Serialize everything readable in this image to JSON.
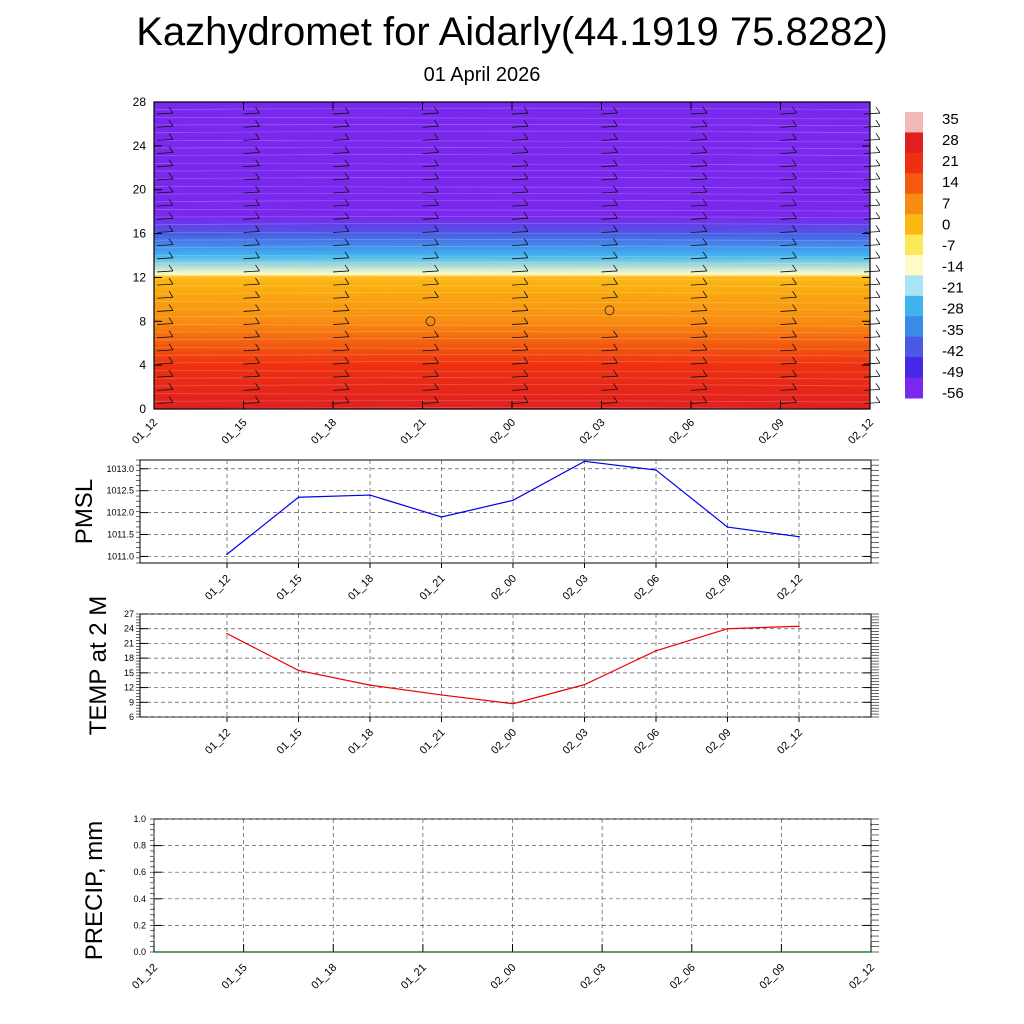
{
  "title": "Kazhydromet for Aidarly(44.1919 75.8282)",
  "date": "01 April 2026",
  "colors": {
    "pmsl_line": "#0000ee",
    "temp_line": "#ee0000",
    "precip_line": "#006400",
    "grid": "#555555"
  },
  "chart_data": [
    {
      "type": "heatmap",
      "name": "cross-section",
      "x_ticks": [
        "01_12",
        "01_15",
        "01_18",
        "01_21",
        "02_00",
        "02_03",
        "02_06",
        "02_09",
        "02_12"
      ],
      "y_ticks": [
        0,
        4,
        8,
        12,
        16,
        20,
        24,
        28
      ],
      "ylim": [
        0,
        28
      ],
      "colorbar_labels": [
        "35",
        "28",
        "21",
        "14",
        "7",
        "0",
        "-7",
        "-14",
        "-21",
        "-28",
        "-35",
        "-42",
        "-49",
        "-56"
      ],
      "colorbar_colors": [
        "#f3b8b8",
        "#e02020",
        "#ee3010",
        "#f55a10",
        "#f88c10",
        "#fbb810",
        "#fde85a",
        "#fefbc8",
        "#a8e4f4",
        "#40b4ee",
        "#3a8ae8",
        "#4a5ae4",
        "#4428e8",
        "#7a28ee"
      ],
      "value_profile": [
        {
          "height": 0,
          "value": 32
        },
        {
          "height": 4,
          "value": 24
        },
        {
          "height": 8,
          "value": 12
        },
        {
          "height": 12,
          "value": 0
        },
        {
          "height": 12.3,
          "value": -14
        },
        {
          "height": 14,
          "value": -26
        },
        {
          "height": 16,
          "value": -38
        },
        {
          "height": 17.5,
          "value": -50
        },
        {
          "height": 19,
          "value": -56
        },
        {
          "height": 28,
          "value": -58
        }
      ],
      "grid": false
    },
    {
      "type": "line",
      "name": "pmsl",
      "ylabel": "PMSL",
      "categories": [
        "01_12",
        "01_15",
        "01_18",
        "01_21",
        "02_00",
        "02_03",
        "02_06",
        "02_09",
        "02_12"
      ],
      "values": [
        1011.05,
        1012.35,
        1012.4,
        1011.9,
        1012.28,
        1013.17,
        1012.97,
        1011.67,
        1011.45
      ],
      "y_ticks": [
        "1011.0",
        "1011.5",
        "1012.0",
        "1012.5",
        "1013.0"
      ],
      "ylim": [
        1010.85,
        1013.2
      ],
      "grid": true
    },
    {
      "type": "line",
      "name": "temp",
      "ylabel": "TEMP at 2 M",
      "categories": [
        "01_12",
        "01_15",
        "01_18",
        "01_21",
        "02_00",
        "02_03",
        "02_06",
        "02_09",
        "02_12"
      ],
      "values": [
        23.0,
        15.5,
        12.5,
        10.5,
        8.7,
        12.6,
        19.5,
        24.0,
        24.5
      ],
      "y_ticks": [
        "6",
        "9",
        "12",
        "15",
        "18",
        "21",
        "24",
        "27"
      ],
      "ylim": [
        6,
        27
      ],
      "grid": true
    },
    {
      "type": "line",
      "name": "precip",
      "ylabel": "PRECIP, mm",
      "categories": [
        "01_12",
        "01_15",
        "01_18",
        "01_21",
        "02_00",
        "02_03",
        "02_06",
        "02_09",
        "02_12"
      ],
      "values": [
        0,
        0,
        0,
        0,
        0,
        0,
        0,
        0,
        0
      ],
      "y_ticks": [
        "0.0",
        "0.2",
        "0.4",
        "0.6",
        "0.8",
        "1.0"
      ],
      "ylim": [
        0,
        1
      ],
      "grid": true
    }
  ]
}
